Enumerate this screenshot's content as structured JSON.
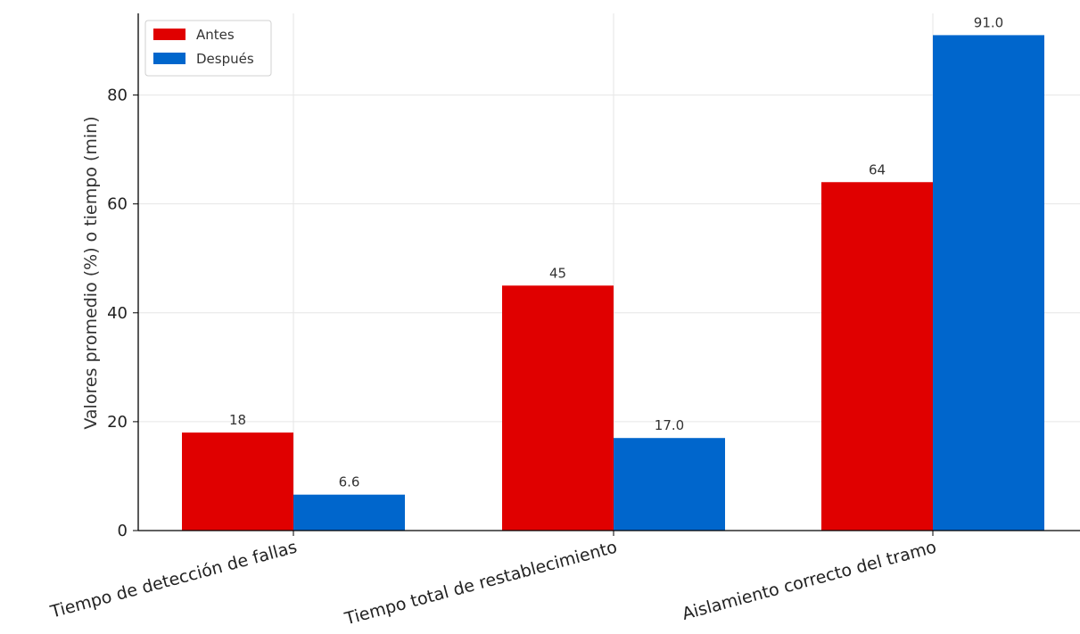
{
  "chart_data": {
    "type": "bar",
    "title": "",
    "xlabel": "",
    "ylabel": "Valores promedio (%) o tiempo (min)",
    "categories": [
      "Tiempo de detección de fallas",
      "Tiempo total de restablecimiento",
      "Aislamiento correcto del tramo"
    ],
    "series": [
      {
        "name": "Antes",
        "color": "#e00000",
        "values": [
          18,
          45,
          64
        ],
        "labels": [
          "18",
          "45",
          "64"
        ]
      },
      {
        "name": "Después",
        "color": "#0066cc",
        "values": [
          6.6,
          17.0,
          91.0
        ],
        "labels": [
          "6.6",
          "17.0",
          "91.0"
        ]
      }
    ],
    "ylim": [
      0,
      95
    ],
    "yticks": [
      0,
      20,
      40,
      60,
      80
    ],
    "grid": true,
    "legend_position": "top-left",
    "xtick_rotation": "slanted"
  }
}
